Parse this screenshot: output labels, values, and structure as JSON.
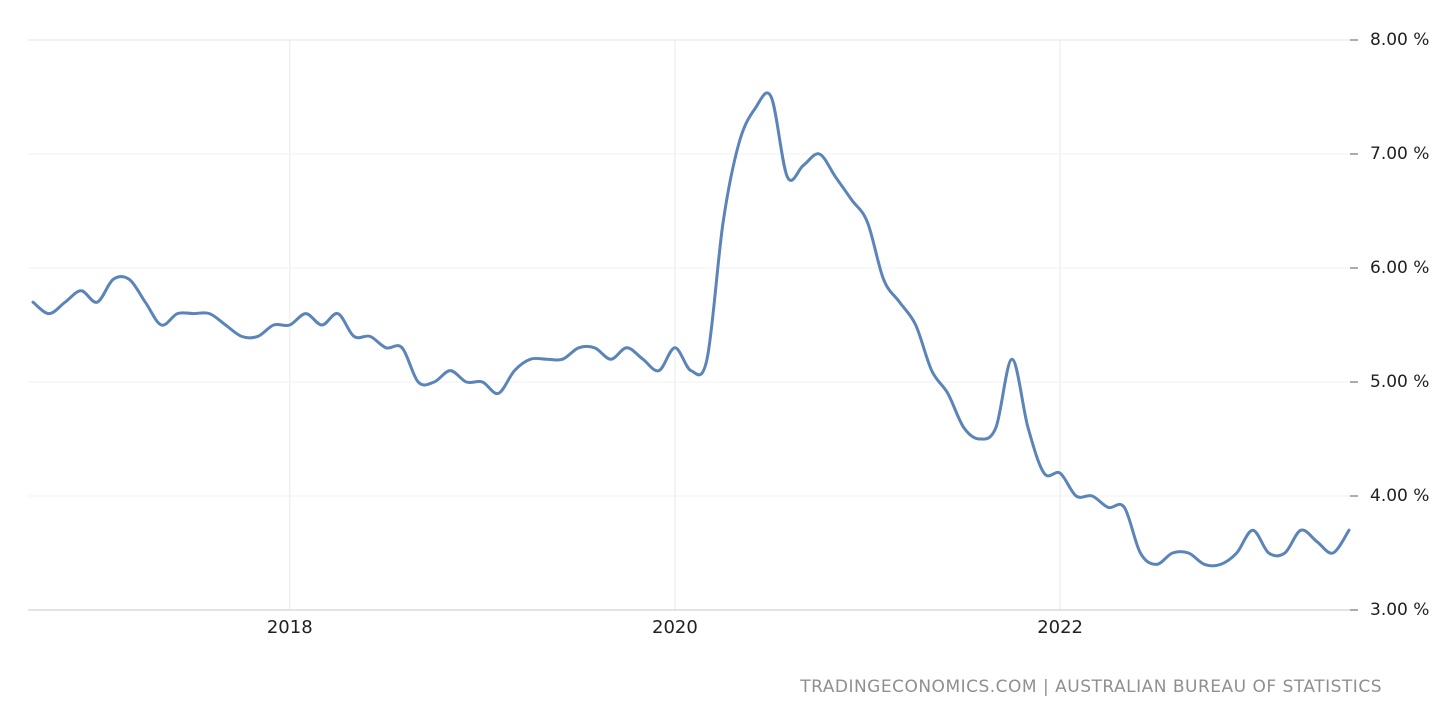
{
  "chart_data": {
    "type": "line",
    "title": "",
    "xlabel": "",
    "ylabel": "",
    "unit": "%",
    "frequency": "monthly",
    "line_color": "#5b84b8",
    "grid": true,
    "legend": "none",
    "ylim": [
      3,
      8
    ],
    "y_ticks": [
      3,
      4,
      5,
      6,
      7,
      8
    ],
    "y_tick_labels": [
      "3.00 %",
      "4.00 %",
      "5.00 %",
      "6.00 %",
      "7.00 %",
      "8.00 %"
    ],
    "x_tick_labels": [
      "2018",
      "2020",
      "2022"
    ],
    "x": [
      "2016-09",
      "2016-10",
      "2016-11",
      "2016-12",
      "2017-01",
      "2017-02",
      "2017-03",
      "2017-04",
      "2017-05",
      "2017-06",
      "2017-07",
      "2017-08",
      "2017-09",
      "2017-10",
      "2017-11",
      "2017-12",
      "2018-01",
      "2018-02",
      "2018-03",
      "2018-04",
      "2018-05",
      "2018-06",
      "2018-07",
      "2018-08",
      "2018-09",
      "2018-10",
      "2018-11",
      "2018-12",
      "2019-01",
      "2019-02",
      "2019-03",
      "2019-04",
      "2019-05",
      "2019-06",
      "2019-07",
      "2019-08",
      "2019-09",
      "2019-10",
      "2019-11",
      "2019-12",
      "2020-01",
      "2020-02",
      "2020-03",
      "2020-04",
      "2020-05",
      "2020-06",
      "2020-07",
      "2020-08",
      "2020-09",
      "2020-10",
      "2020-11",
      "2020-12",
      "2021-01",
      "2021-02",
      "2021-03",
      "2021-04",
      "2021-05",
      "2021-06",
      "2021-07",
      "2021-08",
      "2021-09",
      "2021-10",
      "2021-11",
      "2021-12",
      "2022-01",
      "2022-02",
      "2022-03",
      "2022-04",
      "2022-05",
      "2022-06",
      "2022-07",
      "2022-08",
      "2022-09",
      "2022-10",
      "2022-11",
      "2022-12",
      "2023-01",
      "2023-02",
      "2023-03",
      "2023-04",
      "2023-05",
      "2023-06",
      "2023-07"
    ],
    "values": [
      5.7,
      5.6,
      5.7,
      5.8,
      5.7,
      5.9,
      5.9,
      5.7,
      5.5,
      5.6,
      5.6,
      5.6,
      5.5,
      5.4,
      5.4,
      5.5,
      5.5,
      5.6,
      5.5,
      5.6,
      5.4,
      5.4,
      5.3,
      5.3,
      5.0,
      5.0,
      5.1,
      5.0,
      5.0,
      4.9,
      5.1,
      5.2,
      5.2,
      5.2,
      5.3,
      5.3,
      5.2,
      5.3,
      5.2,
      5.1,
      5.3,
      5.1,
      5.2,
      6.4,
      7.1,
      7.4,
      7.5,
      6.8,
      6.9,
      7.0,
      6.8,
      6.6,
      6.4,
      5.9,
      5.7,
      5.5,
      5.1,
      4.9,
      4.6,
      4.5,
      4.6,
      5.2,
      4.6,
      4.2,
      4.2,
      4.0,
      4.0,
      3.9,
      3.9,
      3.5,
      3.4,
      3.5,
      3.5,
      3.4,
      3.4,
      3.5,
      3.7,
      3.5,
      3.5,
      3.7,
      3.6,
      3.5,
      3.7
    ],
    "source": "TRADINGECONOMICS.COM | AUSTRALIAN BUREAU OF STATISTICS",
    "colors": {
      "background": "#ffffff",
      "grid_vertical": "#e9e9e9",
      "grid_horizontal": "#f1f1f1",
      "grid_top": "#e3e3e3",
      "axis_bottom": "#c9c9c9",
      "tick_mark": "#8a8a8a",
      "tick_text": "#212121",
      "attribution_text": "#8f8f8f"
    }
  }
}
